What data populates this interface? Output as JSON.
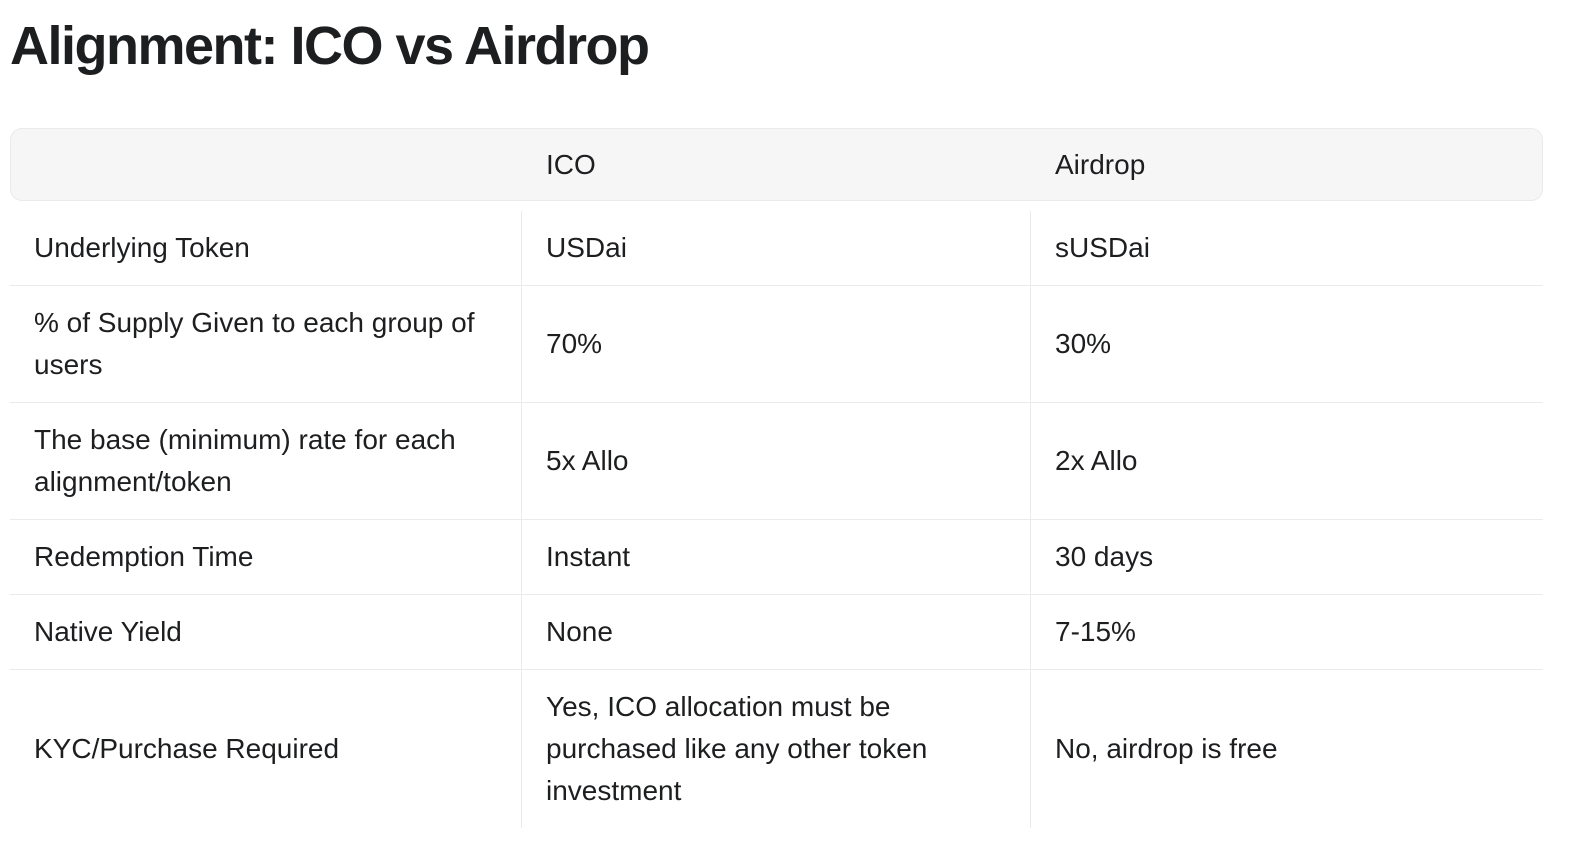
{
  "theme": {
    "header_bg": "#f6f6f7",
    "border": "#e9eaeb",
    "row_divider": "#ebebed",
    "text": "#1d1e20"
  },
  "page": {
    "title": "Alignment: ICO vs Airdrop"
  },
  "table": {
    "columns": [
      "",
      "ICO",
      "Airdrop"
    ],
    "rows": [
      {
        "label": "Underlying Token",
        "ico": "USDai",
        "airdrop": "sUSDai"
      },
      {
        "label": "% of Supply Given to each group of users",
        "ico": "70%",
        "airdrop": "30%"
      },
      {
        "label": "The base (minimum) rate for each alignment/token",
        "ico": "5x Allo",
        "airdrop": "2x Allo"
      },
      {
        "label": "Redemption Time",
        "ico": "Instant",
        "airdrop": "30 days"
      },
      {
        "label": "Native Yield",
        "ico": "None",
        "airdrop": "7-15%"
      },
      {
        "label": "KYC/Purchase Required",
        "ico": "Yes, ICO allocation must be purchased like any other token investment",
        "airdrop": "No, airdrop is free"
      }
    ]
  }
}
